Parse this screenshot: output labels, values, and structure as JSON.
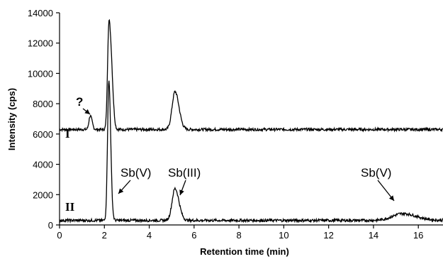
{
  "chart_data": {
    "type": "line",
    "xlabel": "Retention time (min)",
    "ylabel": "Intensity (cps)",
    "xlim": [
      0,
      17.1
    ],
    "ylim": [
      0,
      14000
    ],
    "xticks": [
      0,
      2,
      4,
      6,
      8,
      10,
      12,
      14,
      16
    ],
    "yticks": [
      0,
      2000,
      4000,
      6000,
      8000,
      10000,
      12000,
      14000
    ],
    "xtick_labels": [
      "0",
      "2",
      "4",
      "6",
      "8",
      "10",
      "12",
      "14",
      "16"
    ],
    "ytick_labels": [
      "0",
      "2000",
      "4000",
      "6000",
      "8000",
      "10000",
      "12000",
      "14000"
    ],
    "grid": false,
    "series": [
      {
        "name": "I",
        "baseline": 6300,
        "peaks": [
          {
            "x": 1.37,
            "y": 7200,
            "label": "?"
          },
          {
            "x": 2.2,
            "y": 13200
          },
          {
            "x": 2.33,
            "y": 8900
          },
          {
            "x": 5.15,
            "y": 8800
          }
        ]
      },
      {
        "name": "II",
        "baseline": 300,
        "peaks": [
          {
            "x": 2.2,
            "y": 9500,
            "label": "Sb(V)"
          },
          {
            "x": 5.15,
            "y": 2400,
            "label": "Sb(III)"
          },
          {
            "x": 15.3,
            "y": 750,
            "label": "Sb(V)"
          }
        ]
      }
    ],
    "annotations": {
      "q_mark": "?",
      "trace1_label": "I",
      "trace2_label": "II",
      "sbv_early": "Sb(V)",
      "sbiii": "Sb(III)",
      "sbv_late": "Sb(V)"
    }
  }
}
